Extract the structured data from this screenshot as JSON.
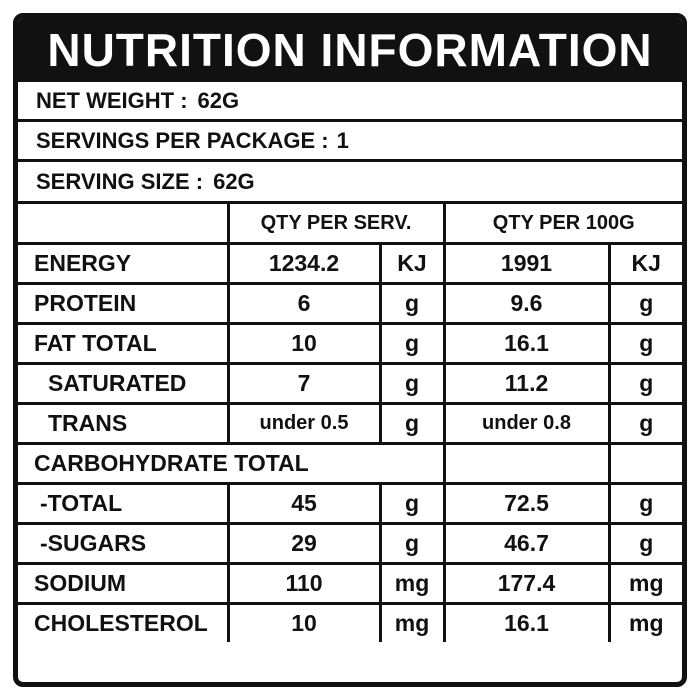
{
  "title": "NUTRITION INFORMATION",
  "info": {
    "net_weight_label": "NET WEIGHT :",
    "net_weight_value": "62G",
    "servings_label": "SERVINGS PER PACKAGE :",
    "servings_value": "1",
    "serving_size_label": "SERVING SIZE :",
    "serving_size_value": "62G"
  },
  "columns": {
    "per_serving": "QTY PER SERV.",
    "per_100g": "QTY PER 100G"
  },
  "rows": [
    {
      "name": "ENERGY",
      "serv": "1234.2",
      "serv_unit": "KJ",
      "g100": "1991",
      "g100_unit": "KJ"
    },
    {
      "name": "PROTEIN",
      "serv": "6",
      "serv_unit": "g",
      "g100": "9.6",
      "g100_unit": "g"
    },
    {
      "name": "FAT TOTAL",
      "serv": "10",
      "serv_unit": "g",
      "g100": "16.1",
      "g100_unit": "g"
    },
    {
      "name": "SATURATED",
      "serv": "7",
      "serv_unit": "g",
      "g100": "11.2",
      "g100_unit": "g"
    },
    {
      "name": "TRANS",
      "serv": "under 0.5",
      "serv_unit": "g",
      "g100": "under 0.8",
      "g100_unit": "g"
    },
    {
      "name": "CARBOHYDRATE TOTAL"
    },
    {
      "name": "-TOTAL",
      "serv": "45",
      "serv_unit": "g",
      "g100": "72.5",
      "g100_unit": "g"
    },
    {
      "name": "-SUGARS",
      "serv": "29",
      "serv_unit": "g",
      "g100": "46.7",
      "g100_unit": "g"
    },
    {
      "name": "SODIUM",
      "serv": "110",
      "serv_unit": "mg",
      "g100": "177.4",
      "g100_unit": "mg"
    },
    {
      "name": "CHOLESTEROL",
      "serv": "10",
      "serv_unit": "mg",
      "g100": "16.1",
      "g100_unit": "mg"
    }
  ]
}
